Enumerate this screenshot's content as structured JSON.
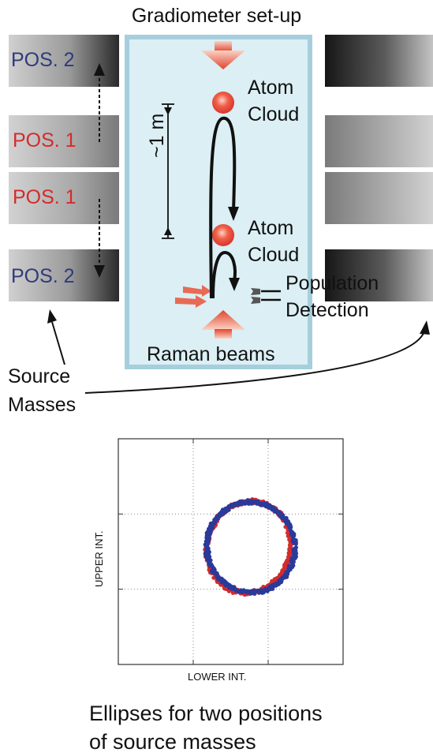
{
  "setup": {
    "title": "Gradiometer set-up",
    "positions": {
      "upper_far": "POS. 2",
      "upper_near": "POS. 1",
      "lower_near": "POS. 1",
      "lower_far": "POS. 2"
    },
    "atom_cloud_upper": [
      "Atom",
      "Cloud"
    ],
    "atom_cloud_lower": [
      "Atom",
      "Cloud"
    ],
    "distance": "~1 m",
    "detection": [
      "Population",
      "Detection"
    ],
    "beams": "Raman beams",
    "source_masses": [
      "Source",
      "Masses"
    ]
  },
  "colors": {
    "pos2": "#2f3a7a",
    "pos1": "#d42b2b",
    "chamber": "#dbeff4",
    "chamber_border": "#a6cfdd"
  },
  "chart_data": {
    "type": "scatter",
    "xlabel": "LOWER INT.",
    "ylabel": "UPPER INT.",
    "series": [
      {
        "color": "#d42b2b",
        "shape": "ellipse",
        "center": [
          0.58,
          0.52
        ],
        "radii": [
          0.37,
          0.41
        ],
        "tilt_deg": 18,
        "points": 520
      },
      {
        "color": "#2a3a9a",
        "shape": "ellipse",
        "center": [
          0.59,
          0.52
        ],
        "radii": [
          0.39,
          0.4
        ],
        "tilt_deg": -18,
        "points": 520
      }
    ],
    "grid": true
  },
  "caption": [
    "Ellipses for two positions",
    "of source masses"
  ]
}
